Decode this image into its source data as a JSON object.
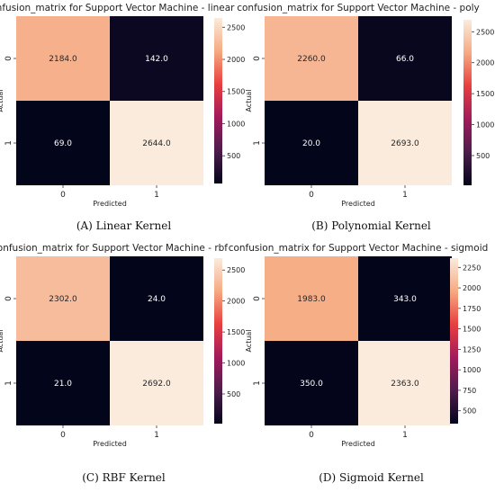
{
  "chart_data": [
    {
      "type": "heatmap",
      "title": "confusion_matrix for Support Vector Machine - linear",
      "caption": "(A) Linear Kernel",
      "xlabel": "Predicted",
      "ylabel": "Actual",
      "x_ticks": [
        "0",
        "1"
      ],
      "y_ticks": [
        "0",
        "1"
      ],
      "values": [
        [
          2184.0,
          142.0
        ],
        [
          69.0,
          2644.0
        ]
      ],
      "labels": [
        [
          "2184.0",
          "142.0"
        ],
        [
          "69.0",
          "2644.0"
        ]
      ],
      "colorbar_range": [
        69,
        2644
      ],
      "colorbar_ticks": [
        500,
        1000,
        1500,
        2000,
        2500
      ]
    },
    {
      "type": "heatmap",
      "title": "confusion_matrix for Support Vector Machine - poly",
      "caption": "(B) Polynomial Kernel",
      "xlabel": "Predicted",
      "ylabel": "Actual",
      "x_ticks": [
        "0",
        "1"
      ],
      "y_ticks": [
        "0",
        "1"
      ],
      "values": [
        [
          2260.0,
          66.0
        ],
        [
          20.0,
          2693.0
        ]
      ],
      "labels": [
        [
          "2260.0",
          "66.0"
        ],
        [
          "20.0",
          "2693.0"
        ]
      ],
      "colorbar_range": [
        20,
        2693
      ],
      "colorbar_ticks": [
        500,
        1000,
        1500,
        2000,
        2500
      ]
    },
    {
      "type": "heatmap",
      "title": "confusion_matrix for Support Vector Machine - rbf",
      "caption": "(C) RBF Kernel",
      "xlabel": "Predicted",
      "ylabel": "Actual",
      "x_ticks": [
        "0",
        "1"
      ],
      "y_ticks": [
        "0",
        "1"
      ],
      "values": [
        [
          2302.0,
          24.0
        ],
        [
          21.0,
          2692.0
        ]
      ],
      "labels": [
        [
          "2302.0",
          "24.0"
        ],
        [
          "21.0",
          "2692.0"
        ]
      ],
      "colorbar_range": [
        21,
        2692
      ],
      "colorbar_ticks": [
        500,
        1000,
        1500,
        2000,
        2500
      ]
    },
    {
      "type": "heatmap",
      "title": "confusion_matrix for Support Vector Machine - sigmoid",
      "caption": "(D) Sigmoid Kernel",
      "xlabel": "Predicted",
      "ylabel": "Actual",
      "x_ticks": [
        "0",
        "1"
      ],
      "y_ticks": [
        "0",
        "1"
      ],
      "values": [
        [
          1983.0,
          343.0
        ],
        [
          350.0,
          2363.0
        ]
      ],
      "labels": [
        [
          "1983.0",
          "343.0"
        ],
        [
          "350.0",
          "2363.0"
        ]
      ],
      "colorbar_range": [
        343,
        2363
      ],
      "colorbar_ticks": [
        500,
        750,
        1000,
        1250,
        1500,
        1750,
        2000,
        2250
      ]
    }
  ]
}
